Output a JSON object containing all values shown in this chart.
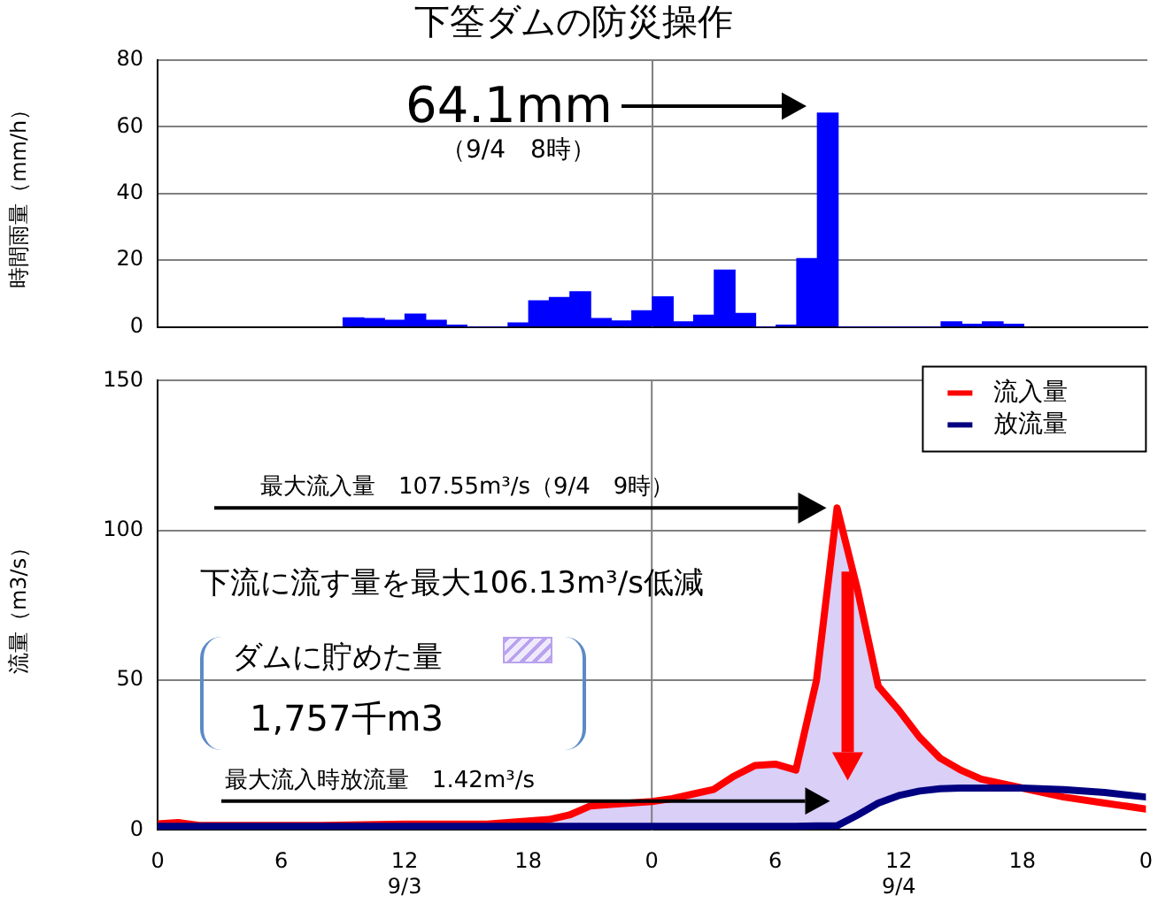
{
  "chart_data": [
    {
      "type": "bar",
      "title": "下筌ダムの防災操作",
      "ylabel": "時間雨量（mm/h）",
      "x": [
        "--09-03T09:30",
        "--09-03T10:30",
        "--09-03T11:30",
        "--09-03T12:30",
        "--09-03T13:30",
        "--09-03T14:30",
        "--09-03T15:30",
        "--09-03T16:30",
        "--09-03T17:30",
        "--09-03T18:30",
        "--09-03T19:30",
        "--09-03T20:30",
        "--09-03T21:30",
        "--09-03T22:30",
        "--09-03T23:30",
        "--09-04T00:30",
        "--09-04T01:30",
        "--09-04T02:30",
        "--09-04T03:30",
        "--09-04T04:30",
        "--09-04T05:30",
        "--09-04T06:30",
        "--09-04T07:30",
        "--09-04T08:30",
        "--09-04T09:30",
        "--09-04T10:30",
        "--09-04T11:30",
        "--09-04T12:30",
        "--09-04T13:30",
        "--09-04T14:30",
        "--09-04T15:30",
        "--09-04T16:30",
        "--09-04T17:30"
      ],
      "values": [
        2.7,
        2.5,
        2,
        3.8,
        2,
        0.5,
        0,
        0,
        1.2,
        7.8,
        8.8,
        10.5,
        2.5,
        1.8,
        4.8,
        9,
        1.5,
        3.5,
        17,
        4,
        0,
        0.5,
        20.5,
        64.1,
        0,
        0,
        0,
        0,
        0,
        1.5,
        0.8,
        1.5,
        0.8
      ],
      "color": "#0000ff",
      "xlim": [
        "--09-03T00:00",
        "--09-05T00:00"
      ],
      "ylim": [
        0,
        80
      ],
      "yticks": [
        0,
        20,
        40,
        60,
        80
      ],
      "tick_labels": "y",
      "grid": "y",
      "ref_lines": [
        {
          "axis": "x",
          "value": "--09-04T00:00",
          "color": "#808080"
        }
      ],
      "annotations": [
        "64.1mm",
        "（9/4　8時）"
      ]
    },
    {
      "type": "line",
      "ylabel": "流量（m3/s）",
      "legend": "top right",
      "grid": "y",
      "x": [
        "--09-03T00:00",
        "--09-03T01:00",
        "--09-03T02:00",
        "--09-03T04:00",
        "--09-03T08:00",
        "--09-03T12:00",
        "--09-03T16:00",
        "--09-03T18:00",
        "--09-03T19:00",
        "--09-03T20:00",
        "--09-03T21:00",
        "--09-03T22:00",
        "--09-04T00:00",
        "--09-04T01:00",
        "--09-04T02:00",
        "--09-04T03:00",
        "--09-04T04:00",
        "--09-04T05:00",
        "--09-04T06:00",
        "--09-04T07:00",
        "--09-04T08:00",
        "--09-04T09:00",
        "--09-04T10:00",
        "--09-04T11:00",
        "--09-04T12:00",
        "--09-04T13:00",
        "--09-04T14:00",
        "--09-04T15:00",
        "--09-04T16:00",
        "--09-04T18:00",
        "--09-04T20:00",
        "--09-04T22:00",
        "--09-05T00:00"
      ],
      "series": [
        {
          "name": "流入量",
          "color": "#ff0000",
          "values": [
            2,
            2.5,
            1.5,
            1.5,
            1.5,
            2,
            2,
            3,
            3.5,
            5,
            8,
            8.5,
            9.5,
            10.5,
            12,
            13.5,
            18,
            21.5,
            22,
            20,
            50,
            107.5,
            80,
            48,
            40,
            31,
            24,
            20,
            17,
            14,
            11,
            9,
            7
          ],
          "lower": [
            1.2,
            1.2,
            1.2,
            1.2,
            1.2,
            1.2,
            1.2,
            1.2,
            1.2,
            1.2,
            1.2,
            1.2,
            1.2,
            1.2,
            1.2,
            1.2,
            1.2,
            1.2,
            1.2,
            1.2,
            1.4,
            1.4,
            5,
            9,
            11.5,
            13,
            13.8,
            14,
            14,
            14,
            null,
            null,
            null
          ],
          "upper": [
            2,
            2.5,
            1.5,
            1.5,
            1.5,
            2,
            2,
            3,
            3.5,
            5,
            8,
            8.5,
            9.5,
            10.5,
            12,
            13.5,
            18,
            21.5,
            22,
            20,
            50,
            107.5,
            80,
            48,
            40,
            31,
            24,
            20,
            17,
            14,
            null,
            null,
            null
          ]
        },
        {
          "name": "放流量",
          "color": "#000080",
          "values": [
            1.2,
            1.2,
            1.2,
            1.2,
            1.2,
            1.2,
            1.2,
            1.2,
            1.2,
            1.2,
            1.2,
            1.2,
            1.2,
            1.2,
            1.2,
            1.2,
            1.2,
            1.2,
            1.2,
            1.2,
            1.4,
            1.4,
            5,
            9,
            11.5,
            13,
            13.8,
            14,
            14,
            14,
            13.5,
            12.5,
            11
          ]
        }
      ],
      "xlim": [
        "--09-03T00:00",
        "--09-05T00:00"
      ],
      "xticks": [
        {
          "value": "--09-03T00:00",
          "label": "0"
        },
        {
          "value": "--09-03T06:00",
          "label": "6"
        },
        {
          "value": "--09-03T12:00",
          "label": "12\n9/3"
        },
        {
          "value": "--09-03T18:00",
          "label": "18"
        },
        {
          "value": "--09-04T00:00",
          "label": "0"
        },
        {
          "value": "--09-04T06:00",
          "label": "6"
        },
        {
          "value": "--09-04T12:00",
          "label": "12\n9/4"
        },
        {
          "value": "--09-04T18:00",
          "label": "18"
        },
        {
          "value": "--09-05T00:00",
          "label": "0"
        }
      ],
      "ylim": [
        0,
        150
      ],
      "yticks": [
        0,
        50,
        100,
        150
      ],
      "ref_lines": [
        {
          "axis": "x",
          "value": "--09-04T00:00",
          "color": "#808080"
        }
      ],
      "annotations": [
        "最大流入量　107.55m³/s（9/4　9時）",
        "下流に流す量を最大106.13m³/s低減",
        "ダムに貯めた量",
        "1,757千m3",
        "最大流入時放流量　1.42m³/s"
      ]
    }
  ]
}
